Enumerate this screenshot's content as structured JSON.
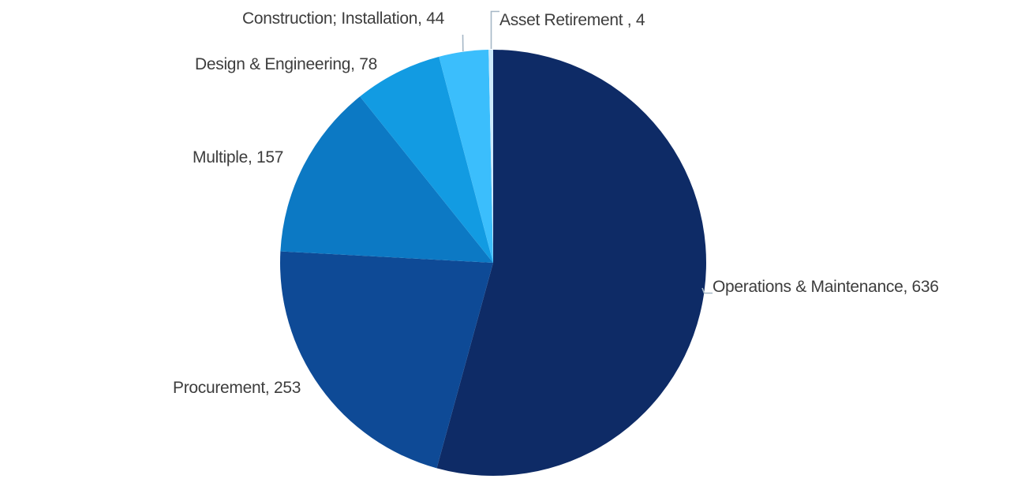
{
  "chart_data": {
    "type": "pie",
    "title": "",
    "total": 1172,
    "start_angle_deg": 0,
    "direction": "clockwise",
    "legend_position": "none",
    "data_labels": "outside, category name + value",
    "background": "#FFFFFF",
    "label_text_color": "#3D3D3D",
    "leader_line_color": "#A6B7C6",
    "slices": [
      {
        "name": "Operations & Maintenance",
        "value": 636,
        "label": "Operations & Maintenance, 636",
        "color": "#0E2B66"
      },
      {
        "name": "Procurement",
        "value": 253,
        "label": "Procurement, 253",
        "color": "#0E4A96"
      },
      {
        "name": "Multiple",
        "value": 157,
        "label": "Multiple, 157",
        "color": "#0C79C4"
      },
      {
        "name": "Design & Engineering",
        "value": 78,
        "label": "Design & Engineering, 78",
        "color": "#129BE2"
      },
      {
        "name": "Construction; Installation",
        "value": 44,
        "label": "Construction; Installation, 44",
        "color": "#3BBEFC"
      },
      {
        "name": "Asset Retirement",
        "value": 4,
        "label": "Asset Retirement , 4",
        "color": "#CDEAFB"
      }
    ]
  }
}
